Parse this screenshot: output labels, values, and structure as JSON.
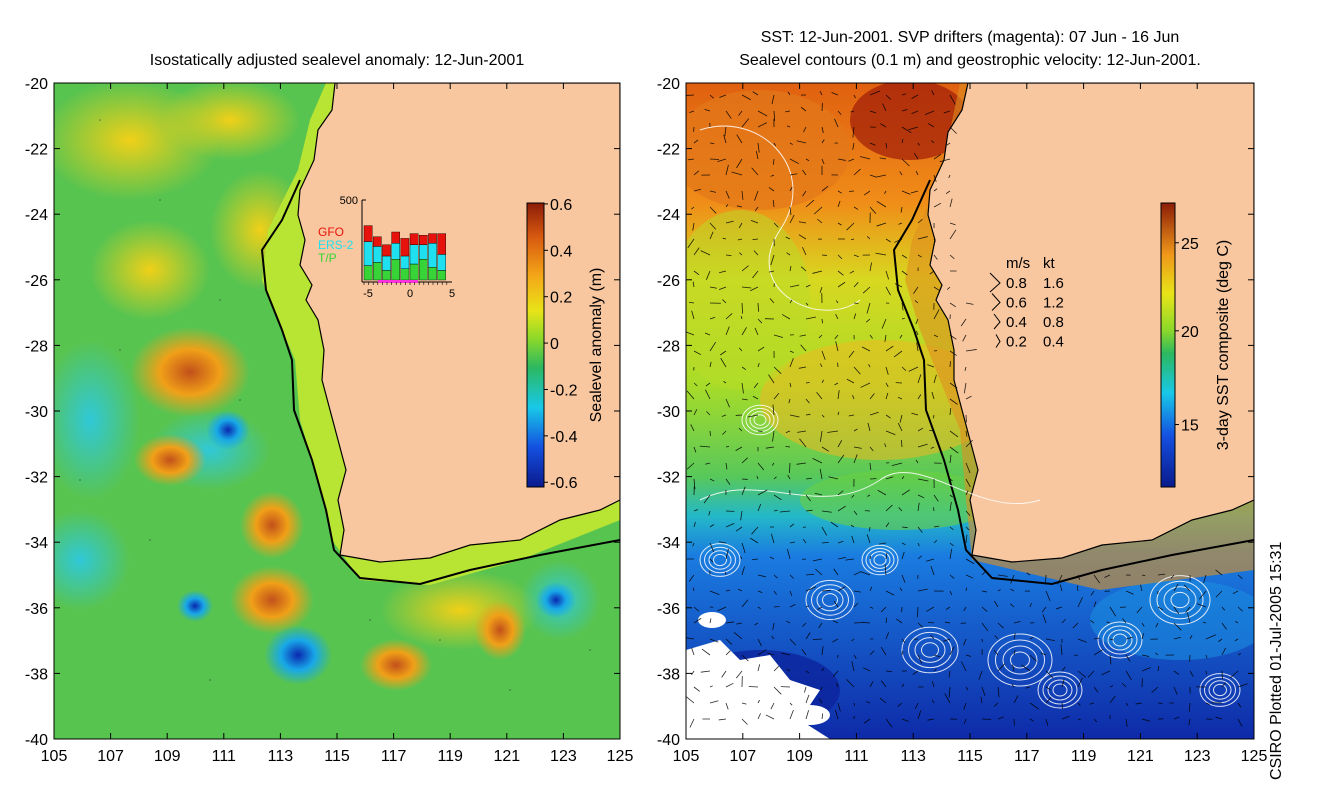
{
  "left_panel": {
    "title": "Isostatically adjusted sealevel anomaly: 12-Jun-2001",
    "x_ticks": [
      "105",
      "107",
      "109",
      "111",
      "113",
      "115",
      "117",
      "119",
      "121",
      "123",
      "125"
    ],
    "y_ticks": [
      "-20",
      "-22",
      "-24",
      "-26",
      "-28",
      "-30",
      "-32",
      "-34",
      "-36",
      "-38",
      "-40"
    ],
    "colorbar": {
      "label": "Sealevel anomaly (m)",
      "ticks": [
        "0.6",
        "0.4",
        "0.2",
        "0",
        "-0.2",
        "-0.4",
        "-0.6"
      ]
    },
    "inset": {
      "ymax_label": "500",
      "x_ticks": [
        "-5",
        "0",
        "5"
      ],
      "legend": [
        {
          "name": "GFO",
          "color": "#e8120c"
        },
        {
          "name": "ERS-2",
          "color": "#1ee0f0"
        },
        {
          "name": "T/P",
          "color": "#36d436"
        }
      ],
      "bars": [
        {
          "tp": 0.18,
          "ers": 0.3,
          "gfo": 0.2
        },
        {
          "tp": 0.22,
          "ers": 0.2,
          "gfo": 0.12
        },
        {
          "tp": 0.12,
          "ers": 0.18,
          "gfo": 0.14
        },
        {
          "tp": 0.26,
          "ers": 0.2,
          "gfo": 0.14
        },
        {
          "tp": 0.14,
          "ers": 0.16,
          "gfo": 0.22
        },
        {
          "tp": 0.2,
          "ers": 0.24,
          "gfo": 0.14
        },
        {
          "tp": 0.26,
          "ers": 0.18,
          "gfo": 0.12
        },
        {
          "tp": 0.16,
          "ers": 0.3,
          "gfo": 0.12
        },
        {
          "tp": 0.12,
          "ers": 0.2,
          "gfo": 0.26
        }
      ]
    }
  },
  "right_panel": {
    "title_line1": "SST: 12-Jun-2001. SVP drifters (magenta): 07 Jun - 16 Jun",
    "title_line2": "Sealevel contours (0.1 m) and geostrophic velocity: 12-Jun-2001.",
    "x_ticks": [
      "105",
      "107",
      "109",
      "111",
      "113",
      "115",
      "117",
      "119",
      "121",
      "123",
      "125"
    ],
    "y_ticks": [
      "-20",
      "-22",
      "-24",
      "-26",
      "-28",
      "-30",
      "-32",
      "-34",
      "-36",
      "-38",
      "-40"
    ],
    "colorbar": {
      "label": "3-day SST composite (deg C)",
      "ticks": [
        "25",
        "20",
        "15"
      ]
    },
    "velocity_legend": {
      "header_ms": "m/s",
      "header_kt": "kt",
      "rows": [
        {
          "ms": "0.8",
          "kt": "1.6"
        },
        {
          "ms": "0.6",
          "kt": "1.2"
        },
        {
          "ms": "0.4",
          "kt": "0.8"
        },
        {
          "ms": "0.2",
          "kt": "0.4"
        }
      ]
    }
  },
  "credit": "CSIRO Plotted 01-Jul-2005 15:31",
  "colors": {
    "land": "#f8c79f",
    "coast": "#000000",
    "shelf": "#c8e830",
    "slope": "#7adc28",
    "ocean_green": "#5cc84e",
    "sst_warm": "#e05a10",
    "sst_cool": "#1a64d8",
    "contour": "#ffffff"
  }
}
